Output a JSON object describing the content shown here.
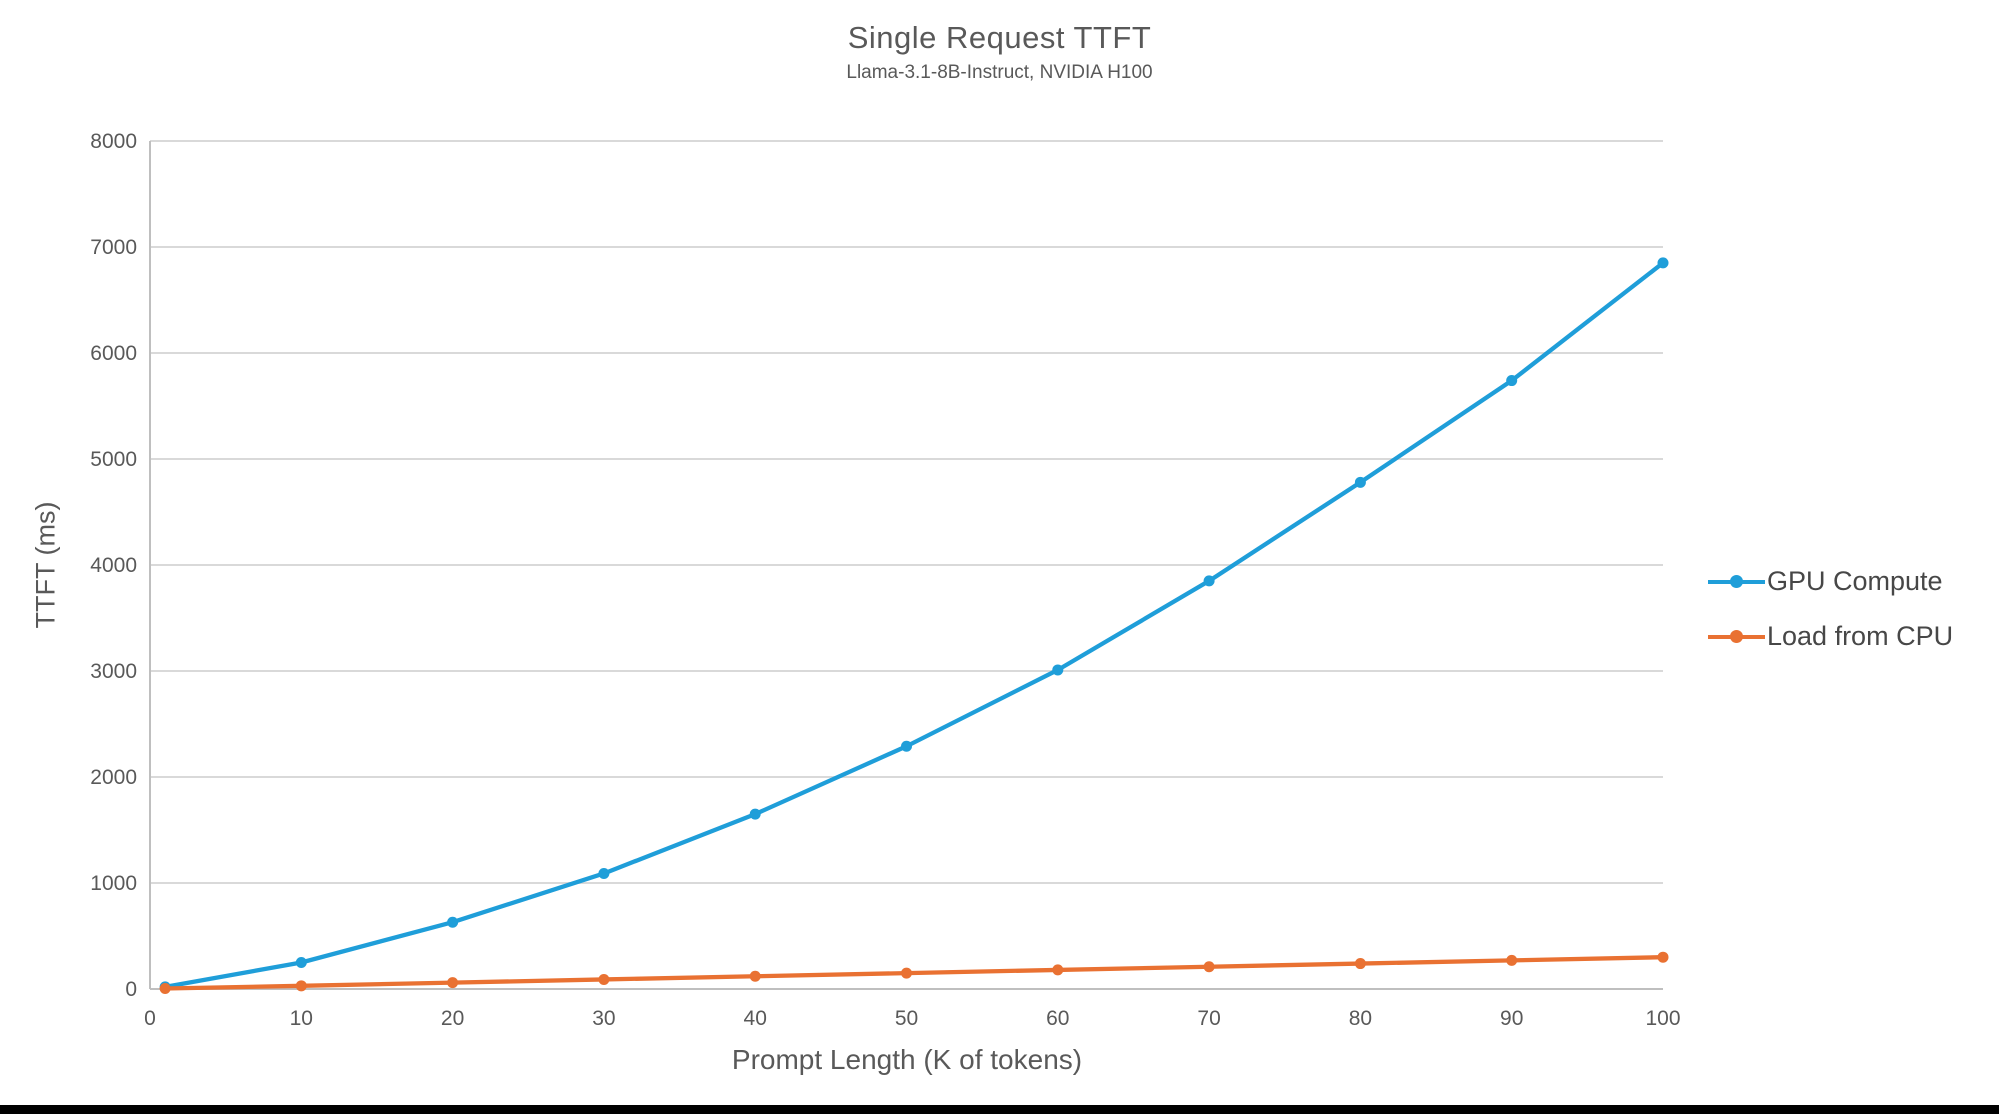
{
  "page": {
    "background": "#ffffff",
    "bottom_bar_color": "#000000"
  },
  "chart_data": {
    "type": "line",
    "title": "Single Request TTFT",
    "subtitle": "Llama-3.1-8B-Instruct, NVIDIA H100",
    "xlabel": "Prompt Length (K of tokens)",
    "ylabel": "TTFT (ms)",
    "x": [
      1,
      10,
      20,
      30,
      40,
      50,
      60,
      70,
      80,
      90,
      100
    ],
    "series": [
      {
        "name": "GPU Compute",
        "color": "#1F9ED9",
        "values": [
          20,
          250,
          630,
          1090,
          1650,
          2290,
          3010,
          3850,
          4780,
          5740,
          6850
        ]
      },
      {
        "name": "Load from CPU",
        "color": "#E97132",
        "values": [
          5,
          30,
          60,
          90,
          120,
          150,
          180,
          210,
          240,
          270,
          300
        ]
      }
    ],
    "xlim": [
      0,
      100
    ],
    "ylim": [
      0,
      8000
    ],
    "x_ticks": [
      0,
      10,
      20,
      30,
      40,
      50,
      60,
      70,
      80,
      90,
      100
    ],
    "y_ticks": [
      0,
      1000,
      2000,
      3000,
      4000,
      5000,
      6000,
      7000,
      8000
    ],
    "grid": "horizontal",
    "gridline_color": "#D9D9D9",
    "axis_line_color": "#BFBFBF",
    "tick_label_color": "#595959",
    "marker": "circle",
    "legend_position": "right",
    "legend": [
      "GPU Compute",
      "Load from CPU"
    ]
  }
}
